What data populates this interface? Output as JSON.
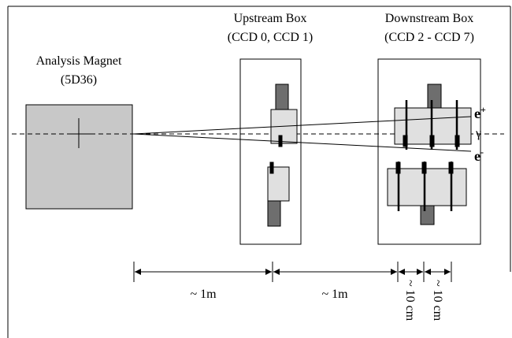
{
  "magnet": {
    "title": "Analysis Magnet",
    "subtitle": "(5D36)"
  },
  "upstream_box": {
    "title": "Upstream Box",
    "subtitle": "(CCD 0, CCD 1)"
  },
  "downstream_box": {
    "title": "Downstream Box",
    "subtitle": "(CCD 2 - CCD 7)"
  },
  "beams": {
    "positron": {
      "symbol": "e",
      "charge": "+"
    },
    "photon": "γ",
    "electron": {
      "symbol": "e",
      "charge": "-"
    }
  },
  "distances": [
    "~ 1m",
    "~ 1m",
    "~ 10 cm",
    "~ 10 cm"
  ]
}
